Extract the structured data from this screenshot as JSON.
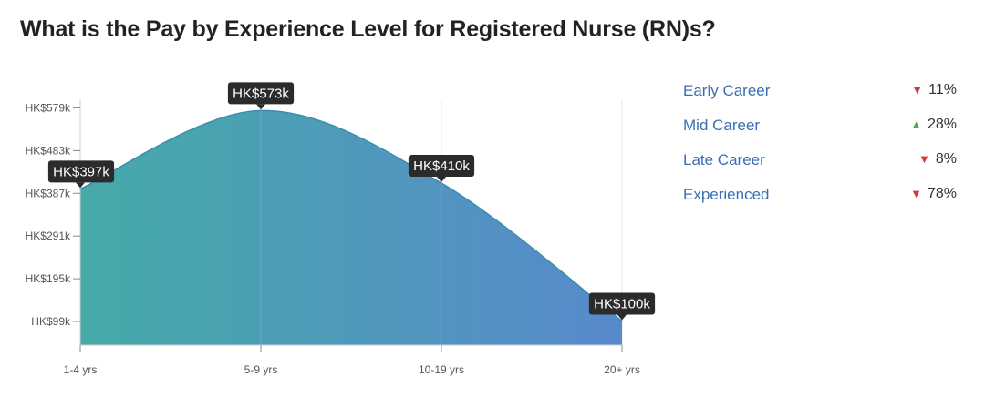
{
  "colors": {
    "gradient_start": "#45aaa8",
    "gradient_end": "#5889cc",
    "line": "#3a8fb0",
    "legend_text": "#3a6fb5",
    "down": "#d23a3a",
    "up": "#4caf50",
    "tooltip_bg": "#2b2b2b"
  },
  "chart_data": {
    "type": "area",
    "title": "What is the Pay by Experience Level for Registered Nurse (RN)s?",
    "categories": [
      "1-4 yrs",
      "5-9 yrs",
      "10-19 yrs",
      "20+ yrs"
    ],
    "values": [
      397,
      573,
      410,
      100
    ],
    "value_labels": [
      "HK$397k",
      "HK$573k",
      "HK$410k",
      "HK$100k"
    ],
    "y_ticks": [
      99,
      195,
      291,
      387,
      483,
      579
    ],
    "y_tick_labels": [
      "HK$99k",
      "HK$195k",
      "HK$291k",
      "HK$387k",
      "HK$483k",
      "HK$579k"
    ],
    "ylim": [
      50,
      599
    ],
    "grid": "vertical"
  },
  "legend": {
    "items": [
      {
        "label": "Early Career",
        "direction": "down",
        "arrow": "▼",
        "change": "11%"
      },
      {
        "label": "Mid Career",
        "direction": "up",
        "arrow": "▲",
        "change": "28%"
      },
      {
        "label": "Late Career",
        "direction": "down",
        "arrow": "▼",
        "change": "8%"
      },
      {
        "label": "Experienced",
        "direction": "down",
        "arrow": "▼",
        "change": "78%"
      }
    ]
  }
}
